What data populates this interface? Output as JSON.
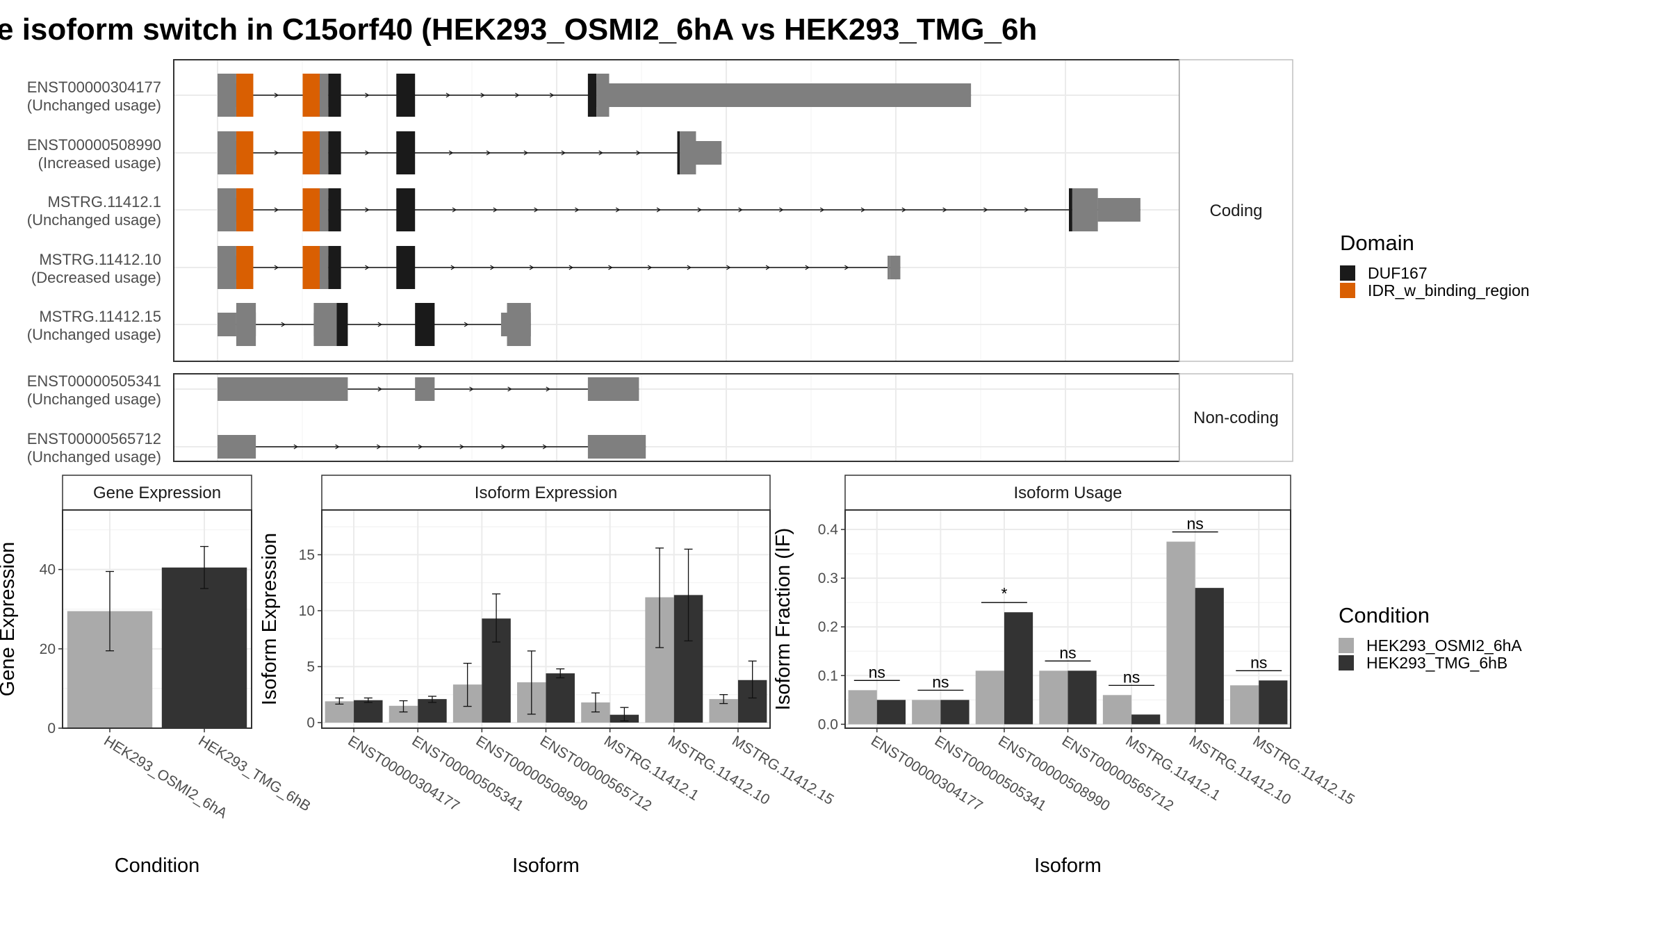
{
  "title": "e isoform switch in C15orf40 (HEK293_OSMI2_6hA vs HEK293_TMG_6h",
  "colors": {
    "utr": "#7f7f7f",
    "duf167": "#1a1a1a",
    "idr": "#d95f02",
    "cond_a": "#aaaaaa",
    "cond_b": "#333333"
  },
  "legend_domain": {
    "title": "Domain",
    "items": [
      {
        "label": "DUF167",
        "color": "#1a1a1a"
      },
      {
        "label": "IDR_w_binding_region",
        "color": "#d95f02"
      }
    ]
  },
  "legend_condition": {
    "title": "Condition",
    "items": [
      {
        "label": "HEK293_OSMI2_6hA",
        "color": "#aaaaaa"
      },
      {
        "label": "HEK293_TMG_6hB",
        "color": "#333333"
      }
    ]
  },
  "chart_data": [
    {
      "type": "gene-structure",
      "coordinate_range": [
        0,
        1000
      ],
      "panels": [
        {
          "label": "Coding",
          "transcripts": [
            {
              "name": "ENST00000304177",
              "status": "(Unchanged usage)",
              "exons": [
                [
                  0,
                  22,
                  "utr"
                ],
                [
                  22,
                  42,
                  "idr"
                ],
                [
                  100,
                  120,
                  "idr"
                ],
                [
                  120,
                  130,
                  "utr"
                ],
                [
                  130,
                  145,
                  "duf167"
                ],
                [
                  210,
                  232,
                  "duf167"
                ],
                [
                  435,
                  445,
                  "duf167"
                ],
                [
                  445,
                  460,
                  "utr"
                ],
                [
                  460,
                  885,
                  "utr"
                ]
              ]
            },
            {
              "name": "ENST00000508990",
              "status": "(Increased usage)",
              "exons": [
                [
                  0,
                  22,
                  "utr"
                ],
                [
                  22,
                  42,
                  "idr"
                ],
                [
                  100,
                  120,
                  "idr"
                ],
                [
                  120,
                  130,
                  "utr"
                ],
                [
                  130,
                  145,
                  "duf167"
                ],
                [
                  210,
                  232,
                  "duf167"
                ],
                [
                  540,
                  543,
                  "duf167"
                ],
                [
                  543,
                  562,
                  "utr"
                ],
                [
                  562,
                  592,
                  "utr"
                ]
              ]
            },
            {
              "name": "MSTRG.11412.1",
              "status": "(Unchanged usage)",
              "exons": [
                [
                  0,
                  22,
                  "utr"
                ],
                [
                  22,
                  42,
                  "idr"
                ],
                [
                  100,
                  120,
                  "idr"
                ],
                [
                  120,
                  130,
                  "utr"
                ],
                [
                  130,
                  145,
                  "duf167"
                ],
                [
                  210,
                  232,
                  "duf167"
                ],
                [
                  1000,
                  1004,
                  "duf167"
                ],
                [
                  1004,
                  1034,
                  "utr"
                ],
                [
                  1034,
                  1084,
                  "utr"
                ]
              ]
            },
            {
              "name": "MSTRG.11412.10",
              "status": "(Decreased usage)",
              "exons": [
                [
                  0,
                  22,
                  "utr"
                ],
                [
                  22,
                  42,
                  "idr"
                ],
                [
                  100,
                  120,
                  "idr"
                ],
                [
                  120,
                  130,
                  "utr"
                ],
                [
                  130,
                  145,
                  "duf167"
                ],
                [
                  210,
                  232,
                  "duf167"
                ],
                [
                  787,
                  790,
                  "utr"
                ],
                [
                  790,
                  802,
                  "utr"
                ]
              ]
            },
            {
              "name": "MSTRG.11412.15",
              "status": "(Unchanged usage)",
              "exons": [
                [
                  0,
                  22,
                  "utr"
                ],
                [
                  22,
                  45,
                  "utr"
                ],
                [
                  113,
                  140,
                  "utr"
                ],
                [
                  140,
                  153,
                  "duf167"
                ],
                [
                  232,
                  255,
                  "duf167"
                ],
                [
                  333,
                  340,
                  "utr"
                ],
                [
                  340,
                  368,
                  "utr"
                ]
              ]
            }
          ]
        },
        {
          "label": "Non-coding",
          "transcripts": [
            {
              "name": "ENST00000505341",
              "status": "(Unchanged usage)",
              "exons": [
                [
                  0,
                  153,
                  "utr"
                ],
                [
                  232,
                  255,
                  "utr"
                ],
                [
                  435,
                  495,
                  "utr"
                ]
              ]
            },
            {
              "name": "ENST00000565712",
              "status": "(Unchanged usage)",
              "exons": [
                [
                  0,
                  45,
                  "utr"
                ],
                [
                  435,
                  503,
                  "utr"
                ]
              ]
            }
          ]
        }
      ]
    },
    {
      "type": "bar",
      "title": "Gene Expression",
      "xlabel": "Condition",
      "ylabel": "Gene Expression",
      "categories": [
        "HEK293_OSMI2_6hA",
        "HEK293_TMG_6hB"
      ],
      "values": [
        29.5,
        40.5
      ],
      "error": [
        [
          19.5,
          39.5
        ],
        [
          35.2,
          45.8
        ]
      ],
      "ylim": [
        0,
        55
      ],
      "yticks": [
        0,
        20,
        40
      ]
    },
    {
      "type": "bar",
      "title": "Isoform Expression",
      "xlabel": "Isoform",
      "ylabel": "Isoform Expression",
      "categories": [
        "ENST00000304177",
        "ENST00000505341",
        "ENST00000508990",
        "ENST00000565712",
        "MSTRG.11412.1",
        "MSTRG.11412.10",
        "MSTRG.11412.15"
      ],
      "series": [
        {
          "name": "HEK293_OSMI2_6hA",
          "values": [
            1.9,
            1.5,
            3.4,
            3.6,
            1.8,
            11.2,
            2.1
          ],
          "error": [
            [
              1.65,
              2.2
            ],
            [
              0.95,
              1.95
            ],
            [
              1.45,
              5.3
            ],
            [
              0.75,
              6.4
            ],
            [
              0.95,
              2.65
            ],
            [
              6.7,
              15.6
            ],
            [
              1.7,
              2.5
            ]
          ]
        },
        {
          "name": "HEK293_TMG_6hB",
          "values": [
            2.0,
            2.1,
            9.3,
            4.4,
            0.7,
            11.4,
            3.8
          ],
          "error": [
            [
              1.8,
              2.2
            ],
            [
              1.8,
              2.35
            ],
            [
              7.2,
              11.5
            ],
            [
              4.0,
              4.8
            ],
            [
              0.15,
              1.35
            ],
            [
              7.3,
              15.5
            ],
            [
              2.2,
              5.5
            ]
          ]
        }
      ],
      "ylim": [
        -0.5,
        19
      ],
      "yticks": [
        0,
        5,
        10,
        15
      ]
    },
    {
      "type": "bar",
      "title": "Isoform Usage",
      "xlabel": "Isoform",
      "ylabel": "Isoform Fraction (IF)",
      "categories": [
        "ENST00000304177",
        "ENST00000505341",
        "ENST00000508990",
        "ENST00000565712",
        "MSTRG.11412.1",
        "MSTRG.11412.10",
        "MSTRG.11412.15"
      ],
      "series": [
        {
          "name": "HEK293_OSMI2_6hA",
          "values": [
            0.07,
            0.05,
            0.11,
            0.11,
            0.06,
            0.375,
            0.08
          ]
        },
        {
          "name": "HEK293_TMG_6hB",
          "values": [
            0.05,
            0.05,
            0.23,
            0.11,
            0.02,
            0.28,
            0.09
          ]
        }
      ],
      "significance": [
        "ns",
        "ns",
        "*",
        "ns",
        "ns",
        "ns",
        "ns"
      ],
      "ylim": [
        -0.008,
        0.44
      ],
      "yticks": [
        "0.0",
        "0.1",
        "0.2",
        "0.3",
        "0.4"
      ]
    }
  ]
}
